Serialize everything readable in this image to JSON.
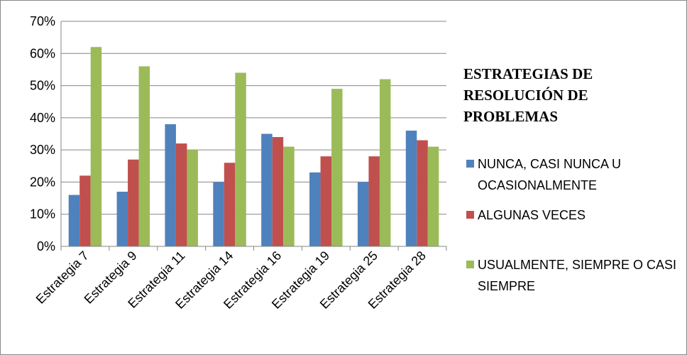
{
  "chart_data": {
    "type": "bar",
    "title": "ESTRATEGIAS DE RESOLUCIÓN DE PROBLEMAS",
    "categories": [
      "Estrategia 7",
      "Estrategia 9",
      "Estrategia 11",
      "Estrategia 14",
      "Estrategia 16",
      "Estrategia 19",
      "Estrategia 25",
      "Estrategia 28"
    ],
    "series": [
      {
        "name": "NUNCA, CASI NUNCA U OCASIONALMENTE",
        "color": "#4f81bd",
        "values": [
          16,
          17,
          38,
          20,
          35,
          23,
          20,
          36
        ]
      },
      {
        "name": "ALGUNAS VECES",
        "color": "#c0504d",
        "values": [
          22,
          27,
          32,
          26,
          34,
          28,
          28,
          33
        ]
      },
      {
        "name": "USUALMENTE, SIEMPRE O CASI SIEMPRE",
        "color": "#9bbb59",
        "values": [
          62,
          56,
          30,
          54,
          31,
          49,
          52,
          31
        ]
      }
    ],
    "ylim": [
      0,
      70
    ],
    "yticks": [
      {
        "value": 0,
        "label": "0%"
      },
      {
        "value": 10,
        "label": "10%"
      },
      {
        "value": 20,
        "label": "20%"
      },
      {
        "value": 30,
        "label": "30%"
      },
      {
        "value": 40,
        "label": "40%"
      },
      {
        "value": 50,
        "label": "50%"
      },
      {
        "value": 60,
        "label": "60%"
      },
      {
        "value": 70,
        "label": "70%"
      }
    ],
    "grid": true,
    "legend": "right"
  }
}
